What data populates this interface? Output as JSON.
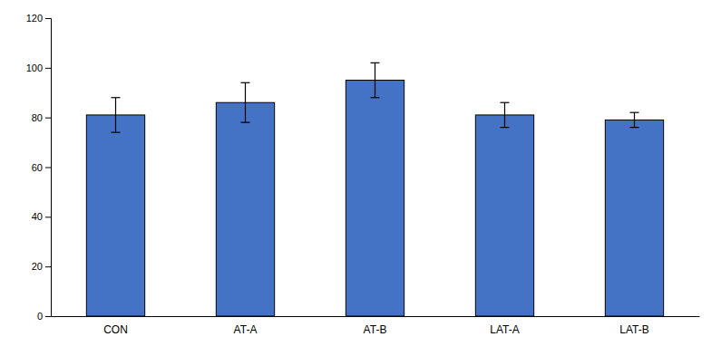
{
  "chart_data": {
    "type": "bar",
    "categories": [
      "CON",
      "AT-A",
      "AT-B",
      "LAT-A",
      "LAT-B"
    ],
    "values": [
      81.0,
      86.0,
      95.0,
      81.0,
      79.0
    ],
    "errors": [
      7.0,
      8.0,
      7.0,
      5.0,
      3.0
    ],
    "color": "#4472C4",
    "ylim": [
      0,
      120
    ],
    "yticks": [
      0,
      20,
      40,
      60,
      80,
      100,
      120
    ],
    "grid": false
  }
}
